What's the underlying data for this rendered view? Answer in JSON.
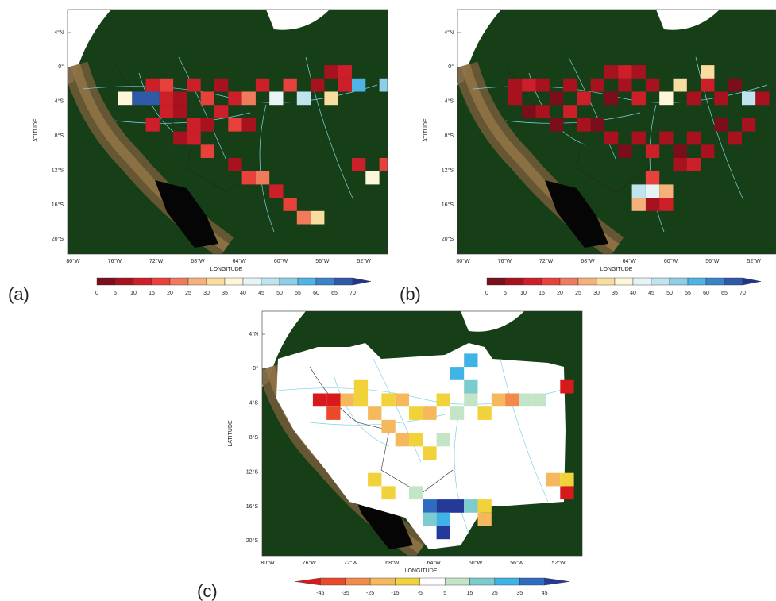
{
  "axis_labels": {
    "y": "LATITUDE",
    "x": "LONGITUDE"
  },
  "lat_ticks": [
    "4°N",
    "0°",
    "4°S",
    "8°S",
    "12°S",
    "16°S",
    "20°S"
  ],
  "lon_ticks": [
    "80°W",
    "76°W",
    "72°W",
    "68°W",
    "64°W",
    "60°W",
    "56°W",
    "52°W"
  ],
  "panels": [
    {
      "label": "(a)",
      "colorbar": {
        "labels": [
          "0",
          "5",
          "10",
          "15",
          "20",
          "25",
          "30",
          "35",
          "40",
          "45",
          "50",
          "55",
          "60",
          "65",
          "70"
        ],
        "colors": [
          "#7a0e1a",
          "#a8121f",
          "#cc1f2a",
          "#e8403a",
          "#f07a5c",
          "#f4b27a",
          "#f9dca0",
          "#fdf6d8",
          "#e6f4f6",
          "#bfe4ee",
          "#8ccfe6",
          "#4fb3e6",
          "#3a83c8",
          "#2e5aa8",
          "#23358a"
        ]
      }
    },
    {
      "label": "(b)",
      "colorbar": {
        "labels": [
          "0",
          "5",
          "10",
          "15",
          "20",
          "25",
          "30",
          "35",
          "40",
          "45",
          "50",
          "55",
          "60",
          "65",
          "70"
        ],
        "colors": [
          "#7a0e1a",
          "#a8121f",
          "#cc1f2a",
          "#e8403a",
          "#f07a5c",
          "#f4b27a",
          "#f9dca0",
          "#fdf6d8",
          "#e6f4f6",
          "#bfe4ee",
          "#8ccfe6",
          "#4fb3e6",
          "#3a83c8",
          "#2e5aa8",
          "#23358a"
        ]
      }
    },
    {
      "label": "(c)",
      "colorbar": {
        "labels": [
          "-45",
          "-35",
          "-25",
          "-15",
          "-5",
          "5",
          "15",
          "25",
          "35",
          "45"
        ],
        "colors": [
          "#d7191c",
          "#ea4a2a",
          "#f48a4a",
          "#f6b85c",
          "#f2d23a",
          "#ffffff",
          "#c4e4c8",
          "#7ccbcf",
          "#3fb2e6",
          "#2f6cc0",
          "#233a98"
        ]
      }
    }
  ]
}
